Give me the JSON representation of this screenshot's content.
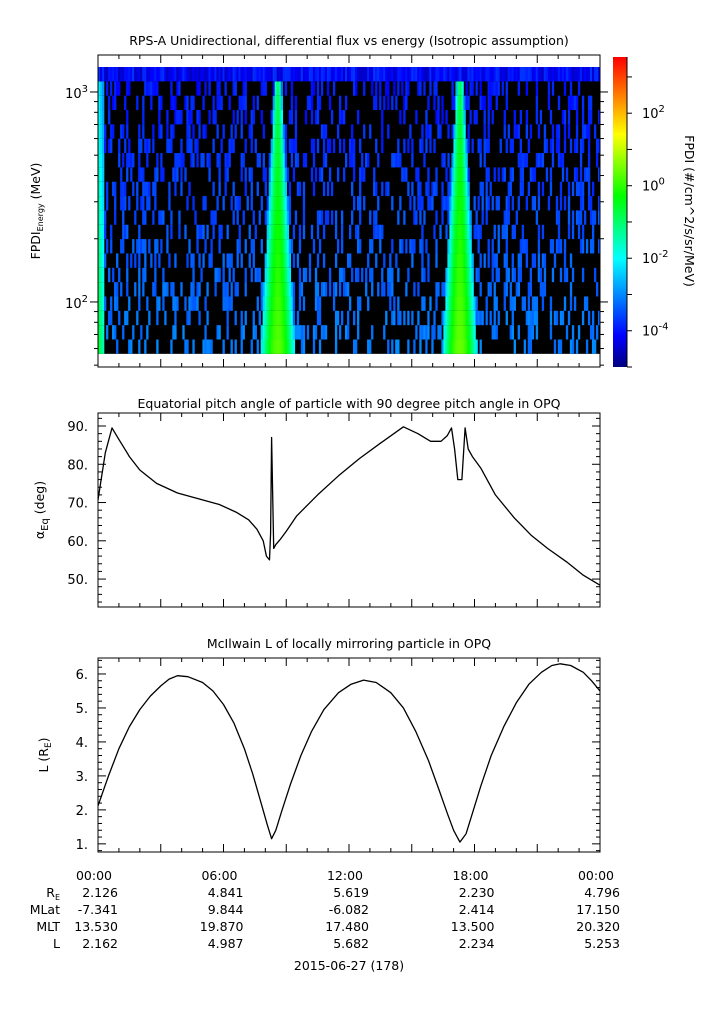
{
  "chart_data": [
    {
      "type": "heatmap",
      "title": "RPS-A Unidirectional, differential flux vs energy (Isotropic assumption)",
      "ylabel_main": "FPDI",
      "ylabel_sub": "Energy",
      "ylabel_unit": "(MeV)",
      "yscale": "log",
      "ylim": [
        49,
        1500
      ],
      "yticks": [
        {
          "value": 100,
          "base": "10",
          "exp": "2"
        },
        {
          "value": 1000,
          "base": "10",
          "exp": "3"
        }
      ],
      "xlim_hours": [
        0,
        24
      ],
      "colorbar": {
        "label": "FPDI (#/cm^2/s/sr/MeV)",
        "scale": "log",
        "range_log10": [
          -5.0,
          3.55
        ],
        "ticks": [
          {
            "exp": "2",
            "base": "10"
          },
          {
            "exp": "0",
            "base": "10"
          },
          {
            "exp": "-2",
            "base": "10"
          },
          {
            "exp": "-4",
            "base": "10"
          }
        ],
        "colormap": [
          "#00007f",
          "#0000ff",
          "#00ffff",
          "#00ff00",
          "#ffff00",
          "#ff0000"
        ]
      },
      "features": [
        {
          "name": "",
          "center_hours": 8.6,
          "peak_log10": 0.3
        },
        {
          "name": "",
          "center_hours": 17.3,
          "peak_log10": 0.4
        }
      ]
    },
    {
      "type": "line",
      "title": "Equatorial pitch angle of particle with 90 degree pitch angle in OPQ",
      "ylabel_main": "α",
      "ylabel_sub": "Eq",
      "ylabel_unit": "(deg)",
      "ylim": [
        42.7,
        93.4
      ],
      "yticks": [
        "50.",
        "60.",
        "70.",
        "80.",
        "90."
      ],
      "x": [
        0,
        0.35,
        0.67,
        1.0,
        1.5,
        2.0,
        2.8,
        3.8,
        4.8,
        5.8,
        6.6,
        7.2,
        7.6,
        7.9,
        8.05,
        8.2,
        8.25,
        8.3,
        8.4,
        8.5,
        8.7,
        9.0,
        9.5,
        10.5,
        11.5,
        12.5,
        13.5,
        14.6,
        15.3,
        15.9,
        16.4,
        16.7,
        16.9,
        17.05,
        17.2,
        17.4,
        17.55,
        17.7,
        17.9,
        18.3,
        19.0,
        19.9,
        20.7,
        21.5,
        22.4,
        23.2,
        24.0
      ],
      "y": [
        70.7,
        83,
        89.5,
        86.5,
        82,
        78.5,
        75,
        72.5,
        71,
        69.5,
        67.5,
        65.5,
        63,
        60,
        56,
        55,
        62,
        87,
        58,
        59,
        60.3,
        62.5,
        66.5,
        72,
        77,
        81.5,
        85.5,
        89.8,
        88,
        86,
        86,
        87.5,
        89.5,
        84,
        76,
        76,
        89.5,
        84,
        82,
        79,
        72,
        66,
        61.5,
        58,
        54.5,
        51,
        48.4
      ]
    },
    {
      "type": "line",
      "title": "McIlwain L of locally mirroring particle in OPQ",
      "ylabel_main": "L (R",
      "ylabel_sub": "E",
      "ylabel_unit": ")",
      "ylim": [
        0.76,
        6.47
      ],
      "yticks": [
        "1.",
        "2.",
        "3.",
        "4.",
        "5.",
        "6."
      ],
      "x": [
        0,
        0.5,
        1,
        1.5,
        2,
        2.5,
        3,
        3.4,
        3.8,
        4.3,
        5,
        5.5,
        6,
        6.5,
        7,
        7.4,
        7.8,
        8.1,
        8.3,
        8.5,
        8.8,
        9.2,
        9.7,
        10.2,
        10.8,
        11.5,
        12.1,
        12.7,
        13.3,
        14,
        14.6,
        15.2,
        15.8,
        16.3,
        16.7,
        17.0,
        17.3,
        17.6,
        17.9,
        18.3,
        18.8,
        19.4,
        20,
        20.6,
        21.2,
        21.7,
        22.1,
        22.6,
        23.2,
        23.6,
        24
      ],
      "y": [
        2.12,
        3.0,
        3.8,
        4.45,
        4.95,
        5.35,
        5.65,
        5.85,
        5.95,
        5.92,
        5.75,
        5.5,
        5.1,
        4.55,
        3.8,
        3.05,
        2.2,
        1.55,
        1.15,
        1.4,
        2.0,
        2.75,
        3.6,
        4.3,
        4.95,
        5.45,
        5.7,
        5.82,
        5.75,
        5.45,
        5.0,
        4.3,
        3.45,
        2.6,
        1.9,
        1.4,
        1.05,
        1.3,
        1.9,
        2.7,
        3.6,
        4.45,
        5.15,
        5.7,
        6.05,
        6.25,
        6.3,
        6.25,
        6.05,
        5.8,
        5.5
      ]
    }
  ],
  "xaxis": {
    "tick_labels": [
      "00:00",
      "06:00",
      "12:00",
      "18:00",
      "00:00"
    ],
    "row_labels": [
      {
        "main": "R",
        "sub": "E"
      },
      {
        "main": "MLat",
        "sub": ""
      },
      {
        "main": "MLT",
        "sub": ""
      },
      {
        "main": "L",
        "sub": ""
      }
    ],
    "rows": [
      [
        "2.126",
        "4.841",
        "5.619",
        "2.230",
        "4.796"
      ],
      [
        "-7.341",
        "9.844",
        "-6.082",
        "2.414",
        "17.150"
      ],
      [
        "13.530",
        "19.870",
        "17.480",
        "13.500",
        "20.320"
      ],
      [
        "2.162",
        "4.987",
        "5.682",
        "2.234",
        "5.253"
      ]
    ],
    "date_label": "2015-06-27 (178)"
  }
}
